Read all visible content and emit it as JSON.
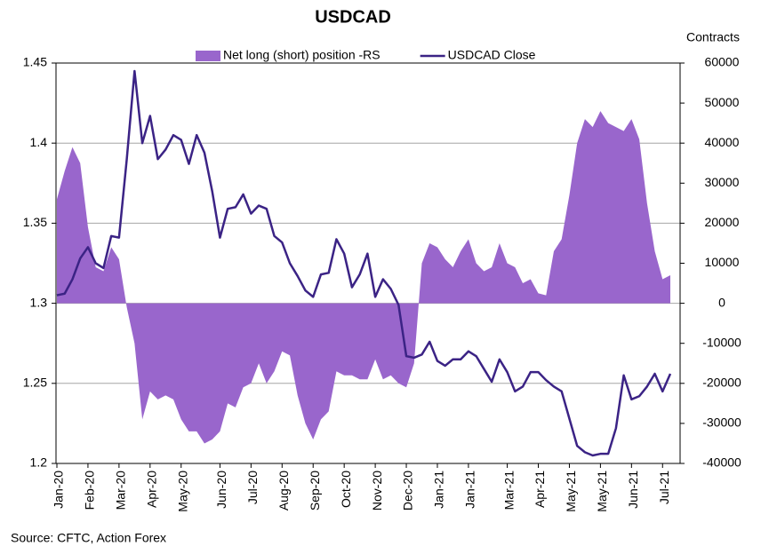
{
  "chart_data": {
    "type": "line",
    "title": "USDCAD",
    "y2_label": "Contracts",
    "source": "Source: CFTC, Action Forex",
    "categories": [
      "Jan-20",
      null,
      null,
      null,
      "Feb-20",
      null,
      null,
      null,
      "Mar-20",
      null,
      null,
      null,
      "Apr-20",
      null,
      null,
      null,
      "May-20",
      null,
      null,
      null,
      null,
      "Jun-20",
      null,
      null,
      null,
      "Jul-20",
      null,
      null,
      null,
      "Aug-20",
      null,
      null,
      null,
      "Sep-20",
      null,
      null,
      null,
      "Oct-20",
      null,
      null,
      null,
      "Nov-20",
      null,
      null,
      null,
      "Dec-20",
      null,
      null,
      null,
      "Jan-21",
      null,
      null,
      null,
      "Jan-21",
      null,
      null,
      null,
      null,
      "Mar-21",
      null,
      null,
      null,
      "Apr-21",
      null,
      null,
      null,
      "May-21",
      null,
      null,
      null,
      "May-21",
      null,
      null,
      null,
      "Jun-21",
      null,
      null,
      null,
      "Jul-21",
      null
    ],
    "series": [
      {
        "name": "Net long (short) position -RS",
        "type": "area",
        "axis": "y2",
        "color": "#9966cc",
        "values": [
          26000,
          33000,
          39000,
          35000,
          19000,
          9000,
          8000,
          14000,
          11000,
          -1000,
          -10000,
          -29000,
          -22000,
          -24000,
          -23000,
          -24000,
          -29000,
          -32000,
          -32000,
          -35000,
          -34000,
          -32000,
          -25000,
          -26000,
          -21000,
          -20000,
          -15000,
          -20000,
          -17000,
          -12000,
          -13000,
          -23000,
          -30000,
          -34000,
          -29000,
          -27000,
          -17000,
          -18000,
          -18000,
          -19000,
          -19000,
          -14000,
          -19000,
          -18000,
          -20000,
          -21000,
          -15000,
          10000,
          15000,
          14000,
          11000,
          9000,
          13000,
          16000,
          10000,
          8000,
          9000,
          15000,
          10000,
          9000,
          5000,
          6000,
          2500,
          2000,
          13000,
          16000,
          27000,
          40000,
          46000,
          44000,
          48000,
          45000,
          44000,
          43000,
          46000,
          41000,
          25000,
          13000,
          6000,
          7000
        ]
      },
      {
        "name": "USDCAD Close",
        "type": "line",
        "color": "#3b2385",
        "values": [
          1.305,
          1.306,
          1.315,
          1.328,
          1.335,
          1.325,
          1.322,
          1.342,
          1.341,
          1.39,
          1.445,
          1.4,
          1.417,
          1.39,
          1.396,
          1.405,
          1.402,
          1.387,
          1.405,
          1.394,
          1.37,
          1.341,
          1.359,
          1.36,
          1.368,
          1.356,
          1.361,
          1.359,
          1.342,
          1.338,
          1.325,
          1.317,
          1.308,
          1.304,
          1.318,
          1.319,
          1.34,
          1.331,
          1.31,
          1.318,
          1.331,
          1.304,
          1.315,
          1.309,
          1.299,
          1.267,
          1.266,
          1.268,
          1.276,
          1.264,
          1.261,
          1.265,
          1.265,
          1.27,
          1.267,
          1.259,
          1.251,
          1.265,
          1.257,
          1.245,
          1.248,
          1.257,
          1.257,
          1.252,
          1.248,
          1.245,
          1.228,
          1.211,
          1.207,
          1.205,
          1.206,
          1.206,
          1.222,
          1.255,
          1.24,
          1.242,
          1.248,
          1.256,
          1.245,
          1.256
        ]
      }
    ],
    "ylim": [
      1.2,
      1.45
    ],
    "yticks": [
      1.2,
      1.25,
      1.3,
      1.35,
      1.4,
      1.45
    ],
    "y2lim": [
      -40000,
      60000
    ],
    "y2ticks": [
      -40000,
      -30000,
      -20000,
      -10000,
      0,
      10000,
      20000,
      30000,
      40000,
      50000,
      60000
    ],
    "grid": true,
    "legend": "top"
  }
}
